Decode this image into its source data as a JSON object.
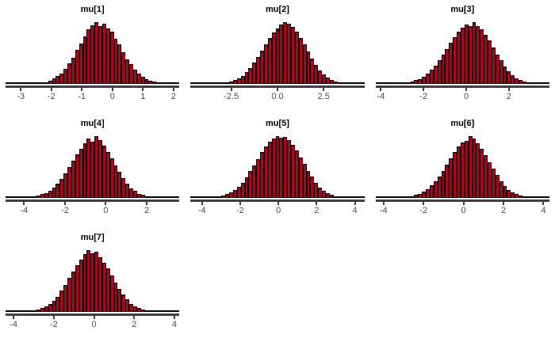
{
  "page": {
    "background": "#ffffff"
  },
  "palette": {
    "bar_fill": "#B2001D",
    "bar_stroke": "#000000",
    "axis_line": "#404040",
    "tick_label": "#4d4d4d",
    "title": "#000000"
  },
  "chart_data": [
    {
      "type": "bar",
      "subtype": "histogram",
      "title": "mu[1]",
      "xlabel": "",
      "ylabel": "",
      "y_axis": "hidden",
      "grid": "off",
      "xlim": [
        -3.5,
        2.2
      ],
      "peak_x": -0.55,
      "ticks": [
        {
          "v": -3,
          "label": "-3"
        },
        {
          "v": -2,
          "label": "-2"
        },
        {
          "v": -1,
          "label": "-1"
        },
        {
          "v": 0,
          "label": "0"
        },
        {
          "v": 1,
          "label": "1"
        },
        {
          "v": 2,
          "label": "2"
        }
      ],
      "bar_heights_pct": [
        1,
        1,
        1,
        1,
        1,
        1,
        1,
        1,
        2,
        2,
        3,
        5,
        9,
        13,
        17,
        25,
        33,
        42,
        55,
        65,
        77,
        88,
        95,
        100,
        94,
        98,
        90,
        84,
        73,
        64,
        51,
        40,
        32,
        23,
        17,
        12,
        8,
        5,
        4,
        2,
        2,
        1,
        1,
        1,
        1
      ]
    },
    {
      "type": "bar",
      "subtype": "histogram",
      "title": "mu[2]",
      "xlabel": "",
      "ylabel": "",
      "y_axis": "hidden",
      "grid": "off",
      "xlim": [
        -4.7,
        4.7
      ],
      "peak_x": 0.5,
      "ticks": [
        {
          "v": -2.5,
          "label": "-2.5"
        },
        {
          "v": 0,
          "label": "0.0"
        },
        {
          "v": 2.5,
          "label": "2.5"
        }
      ],
      "bar_heights_pct": [
        1,
        1,
        1,
        1,
        1,
        1,
        1,
        2,
        2,
        3,
        4,
        6,
        9,
        13,
        19,
        26,
        34,
        44,
        54,
        64,
        74,
        83,
        90,
        96,
        100,
        97,
        92,
        85,
        75,
        64,
        53,
        41,
        31,
        22,
        15,
        10,
        7,
        4,
        3,
        2,
        1,
        1,
        1,
        1,
        1
      ]
    },
    {
      "type": "bar",
      "subtype": "histogram",
      "title": "mu[3]",
      "xlabel": "",
      "ylabel": "",
      "y_axis": "hidden",
      "grid": "off",
      "xlim": [
        -4.25,
        3.9
      ],
      "peak_x": 0.2,
      "ticks": [
        {
          "v": -4,
          "label": "-4"
        },
        {
          "v": -2,
          "label": "-2"
        },
        {
          "v": 0,
          "label": "0"
        },
        {
          "v": 2,
          "label": "2"
        }
      ],
      "bar_heights_pct": [
        1,
        1,
        1,
        1,
        1,
        1,
        1,
        2,
        3,
        4,
        6,
        8,
        12,
        17,
        23,
        30,
        38,
        48,
        57,
        67,
        76,
        84,
        91,
        96,
        93,
        100,
        94,
        88,
        80,
        70,
        59,
        48,
        38,
        28,
        20,
        14,
        9,
        6,
        4,
        2,
        2,
        1,
        1,
        1,
        1
      ]
    },
    {
      "type": "bar",
      "subtype": "histogram",
      "title": "mu[4]",
      "xlabel": "",
      "ylabel": "",
      "y_axis": "hidden",
      "grid": "off",
      "xlim": [
        -4.9,
        3.6
      ],
      "peak_x": -0.55,
      "ticks": [
        {
          "v": -4,
          "label": "-4"
        },
        {
          "v": -2,
          "label": "-2"
        },
        {
          "v": 0,
          "label": "0"
        },
        {
          "v": 2,
          "label": "2"
        }
      ],
      "bar_heights_pct": [
        1,
        1,
        1,
        1,
        1,
        2,
        2,
        3,
        4,
        6,
        8,
        12,
        17,
        23,
        31,
        40,
        50,
        60,
        70,
        80,
        89,
        96,
        91,
        100,
        94,
        85,
        75,
        64,
        53,
        42,
        32,
        23,
        16,
        11,
        7,
        5,
        3,
        2,
        1,
        1,
        1,
        1,
        1,
        1,
        1
      ]
    },
    {
      "type": "bar",
      "subtype": "histogram",
      "title": "mu[5]",
      "xlabel": "",
      "ylabel": "",
      "y_axis": "hidden",
      "grid": "off",
      "xlim": [
        -4.6,
        4.5
      ],
      "peak_x": -0.1,
      "ticks": [
        {
          "v": -4,
          "label": "-4"
        },
        {
          "v": -2,
          "label": "-2"
        },
        {
          "v": 0,
          "label": "0"
        },
        {
          "v": 2,
          "label": "2"
        },
        {
          "v": 4,
          "label": "4"
        }
      ],
      "bar_heights_pct": [
        1,
        1,
        1,
        1,
        1,
        2,
        2,
        3,
        4,
        6,
        9,
        13,
        18,
        25,
        33,
        43,
        53,
        63,
        74,
        83,
        91,
        96,
        100,
        98,
        99,
        93,
        86,
        77,
        66,
        55,
        44,
        34,
        25,
        17,
        12,
        8,
        5,
        3,
        2,
        1,
        1,
        1,
        1,
        1,
        1
      ]
    },
    {
      "type": "bar",
      "subtype": "histogram",
      "title": "mu[6]",
      "xlabel": "",
      "ylabel": "",
      "y_axis": "hidden",
      "grid": "off",
      "xlim": [
        -4.4,
        4.3
      ],
      "peak_x": 0.35,
      "ticks": [
        {
          "v": -4,
          "label": "-4"
        },
        {
          "v": -2,
          "label": "-2"
        },
        {
          "v": 0,
          "label": "0"
        },
        {
          "v": 2,
          "label": "2"
        },
        {
          "v": 4,
          "label": "4"
        }
      ],
      "bar_heights_pct": [
        1,
        1,
        1,
        1,
        1,
        1,
        1,
        2,
        2,
        3,
        5,
        7,
        10,
        14,
        20,
        27,
        35,
        44,
        54,
        64,
        74,
        83,
        90,
        92,
        100,
        96,
        88,
        79,
        69,
        58,
        47,
        37,
        27,
        19,
        13,
        9,
        6,
        4,
        2,
        2,
        1,
        1,
        1,
        1,
        1
      ]
    },
    {
      "type": "bar",
      "subtype": "histogram",
      "title": "mu[7]",
      "xlabel": "",
      "ylabel": "",
      "y_axis": "hidden",
      "grid": "off",
      "xlim": [
        -4.4,
        4.25
      ],
      "peak_x": -0.3,
      "ticks": [
        {
          "v": -4,
          "label": "-4"
        },
        {
          "v": -2,
          "label": "-2"
        },
        {
          "v": 0,
          "label": "0"
        },
        {
          "v": 2,
          "label": "2"
        },
        {
          "v": 4,
          "label": "4"
        }
      ],
      "bar_heights_pct": [
        1,
        1,
        1,
        1,
        1,
        2,
        2,
        3,
        4,
        6,
        9,
        13,
        18,
        25,
        34,
        44,
        55,
        66,
        76,
        85,
        93,
        100,
        95,
        98,
        89,
        80,
        70,
        59,
        48,
        37,
        28,
        20,
        13,
        9,
        6,
        4,
        2,
        2,
        1,
        1,
        1,
        1,
        1,
        1,
        1
      ]
    }
  ]
}
